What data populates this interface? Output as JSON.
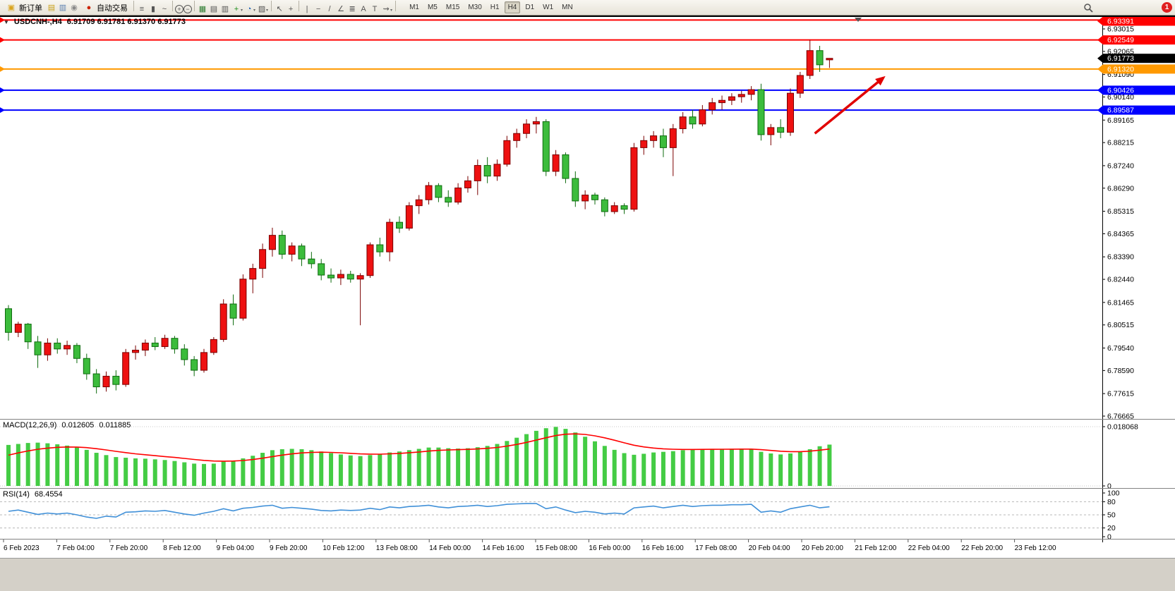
{
  "toolbar": {
    "new_order_label": "新订单",
    "autotrading_label": "自动交易",
    "left_icons": [
      {
        "name": "market-watch-icon",
        "glyph": "▤",
        "color": "#c8a018"
      },
      {
        "name": "data-window-icon",
        "glyph": "▥",
        "color": "#5a7fb0"
      },
      {
        "name": "navigator-icon",
        "glyph": "◉",
        "color": "#8a8a8a"
      }
    ],
    "tools": [
      {
        "sep": true
      },
      {
        "name": "chart-bars-icon",
        "glyph": "≡"
      },
      {
        "name": "chart-candles-icon",
        "glyph": "▮"
      },
      {
        "name": "chart-line-icon",
        "glyph": "~"
      },
      {
        "sep": true
      },
      {
        "name": "zoom-in-icon",
        "glyph": "+",
        "circ": true
      },
      {
        "name": "zoom-out-icon",
        "glyph": "−",
        "circ": true
      },
      {
        "sep": true
      },
      {
        "name": "tile-windows-icon",
        "glyph": "▦",
        "color": "#2e7d32"
      },
      {
        "name": "arrange-windows-icon",
        "glyph": "▤"
      },
      {
        "name": "cascade-windows-icon",
        "glyph": "▥"
      },
      {
        "name": "new-chart-icon",
        "glyph": "+",
        "color": "#1b8f1b",
        "dd": true
      },
      {
        "name": "periods-icon",
        "glyph": "◔",
        "color": "#1a5fb4",
        "dd": true
      },
      {
        "name": "templates-icon",
        "glyph": "▨",
        "dd": true
      },
      {
        "sep": true
      },
      {
        "name": "cursor-icon",
        "glyph": "↖"
      },
      {
        "name": "crosshair-icon",
        "glyph": "+"
      },
      {
        "sep": true
      },
      {
        "name": "vertical-line-icon",
        "glyph": "|"
      },
      {
        "name": "horizontal-line-icon",
        "glyph": "−"
      },
      {
        "name": "trendline-icon",
        "glyph": "/"
      },
      {
        "name": "equidistant-channel-icon",
        "glyph": "∠"
      },
      {
        "name": "fibonacci-icon",
        "glyph": "≣"
      },
      {
        "name": "text-icon",
        "glyph": "A"
      },
      {
        "name": "text-label-icon",
        "glyph": "T"
      },
      {
        "name": "arrows-tool-icon",
        "glyph": "⇝",
        "dd": true
      },
      {
        "sep": true
      }
    ],
    "timeframes": [
      "M1",
      "M5",
      "M15",
      "M30",
      "H1",
      "H4",
      "D1",
      "W1",
      "MN"
    ],
    "active_timeframe": "H4",
    "notification_count": "1"
  },
  "chart": {
    "symbol_title": "USDCNH-,H4",
    "ohlc_text": "6.91709 6.91781 6.91370 6.91773"
  },
  "chart_data": [
    {
      "type": "candlestick",
      "symbol": "USDCNH-",
      "timeframe": "H4",
      "open": 6.91709,
      "high": 6.91781,
      "low": 6.9137,
      "close": 6.91773,
      "y_ticks": [
        "6.93015",
        "6.92065",
        "6.91090",
        "6.90140",
        "6.89165",
        "6.88215",
        "6.87240",
        "6.86290",
        "6.85315",
        "6.84365",
        "6.83390",
        "6.82440",
        "6.81465",
        "6.80515",
        "6.79540",
        "6.78590",
        "6.77615",
        "6.76665"
      ],
      "x_labels": [
        "6 Feb 2023",
        "7 Feb 04:00",
        "7 Feb 20:00",
        "8 Feb 12:00",
        "9 Feb 04:00",
        "9 Feb 20:00",
        "10 Feb 12:00",
        "13 Feb 08:00",
        "14 Feb 00:00",
        "14 Feb 16:00",
        "15 Feb 08:00",
        "16 Feb 00:00",
        "16 Feb 16:00",
        "17 Feb 08:00",
        "20 Feb 04:00",
        "20 Feb 20:00",
        "21 Feb 12:00",
        "22 Feb 04:00",
        "22 Feb 20:00",
        "23 Feb 12:00"
      ],
      "colors": {
        "up": "#ee1111",
        "up_border": "#7a0000",
        "down": "#3cbc3c",
        "down_border": "#0e6b0e",
        "background": "#ffffff"
      },
      "h_lines": [
        {
          "price": 6.93391,
          "label": "6.93391",
          "color": "#ff0000"
        },
        {
          "price": 6.92549,
          "label": "6.92549",
          "color": "#ff0000"
        },
        {
          "price": 6.9132,
          "label": "6.91320",
          "color": "#ff9900"
        },
        {
          "price": 6.90426,
          "label": "6.90426",
          "color": "#0000ff"
        },
        {
          "price": 6.89587,
          "label": "6.89587",
          "color": "#0000ff"
        }
      ],
      "current_price": {
        "price": 6.91773,
        "label": "6.91773",
        "bg": "#000000"
      },
      "annotations": [
        {
          "type": "arrow",
          "color": "#e10000",
          "from_bar": 82.5,
          "from_price": 6.886,
          "to_bar": 89.5,
          "to_price": 6.9095
        }
      ],
      "candles": [
        [
          6.812,
          6.8135,
          6.7985,
          6.802
        ],
        [
          6.802,
          6.8065,
          6.8,
          6.8055
        ],
        [
          6.8055,
          6.806,
          6.795,
          6.798
        ],
        [
          6.798,
          6.8005,
          6.787,
          6.7925
        ],
        [
          6.7925,
          6.7995,
          6.79,
          6.7975
        ],
        [
          6.7975,
          6.7995,
          6.793,
          6.795
        ],
        [
          6.795,
          6.7985,
          6.7925,
          6.7965
        ],
        [
          6.7965,
          6.7975,
          6.789,
          6.791
        ],
        [
          6.791,
          6.793,
          6.782,
          6.7845
        ],
        [
          6.7845,
          6.7865,
          6.7762,
          6.779
        ],
        [
          6.779,
          6.7855,
          6.777,
          6.7835
        ],
        [
          6.7835,
          6.786,
          6.7775,
          6.78
        ],
        [
          6.78,
          6.795,
          6.779,
          6.7935
        ],
        [
          6.7935,
          6.7965,
          6.7905,
          6.7945
        ],
        [
          6.7945,
          6.799,
          6.792,
          6.7975
        ],
        [
          6.7975,
          6.8,
          6.7945,
          6.796
        ],
        [
          6.796,
          6.801,
          6.795,
          6.7995
        ],
        [
          6.7995,
          6.8005,
          6.793,
          6.795
        ],
        [
          6.795,
          6.797,
          6.788,
          6.7905
        ],
        [
          6.7905,
          6.792,
          6.7835,
          6.786
        ],
        [
          6.786,
          6.795,
          6.785,
          6.7935
        ],
        [
          6.7935,
          6.8,
          6.7925,
          6.799
        ],
        [
          6.799,
          6.816,
          6.798,
          6.814
        ],
        [
          6.814,
          6.818,
          6.805,
          6.808
        ],
        [
          6.808,
          6.8265,
          6.807,
          6.8245
        ],
        [
          6.8245,
          6.831,
          6.8185,
          6.829
        ],
        [
          6.829,
          6.8395,
          6.825,
          6.837
        ],
        [
          6.837,
          6.8462,
          6.834,
          6.843
        ],
        [
          6.843,
          6.845,
          6.833,
          6.835
        ],
        [
          6.835,
          6.84,
          6.832,
          6.8385
        ],
        [
          6.8385,
          6.8395,
          6.83,
          6.833
        ],
        [
          6.833,
          6.836,
          6.829,
          6.831
        ],
        [
          6.831,
          6.833,
          6.824,
          6.8262
        ],
        [
          6.8262,
          6.829,
          6.823,
          6.825
        ],
        [
          6.825,
          6.8285,
          6.822,
          6.8265
        ],
        [
          6.8265,
          6.828,
          6.823,
          6.8245
        ],
        [
          6.8245,
          6.827,
          6.805,
          6.826
        ],
        [
          6.826,
          6.84,
          6.825,
          6.839
        ],
        [
          6.839,
          6.842,
          6.834,
          6.836
        ],
        [
          6.836,
          6.85,
          6.832,
          6.8485
        ],
        [
          6.8485,
          6.851,
          6.844,
          6.846
        ],
        [
          6.846,
          6.857,
          6.845,
          6.8555
        ],
        [
          6.8555,
          6.86,
          6.852,
          6.858
        ],
        [
          6.858,
          6.8655,
          6.856,
          6.864
        ],
        [
          6.864,
          6.865,
          6.857,
          6.859
        ],
        [
          6.859,
          6.862,
          6.855,
          6.857
        ],
        [
          6.857,
          6.865,
          6.856,
          6.863
        ],
        [
          6.863,
          6.868,
          6.861,
          6.866
        ],
        [
          6.866,
          6.875,
          6.86,
          6.8725
        ],
        [
          6.8725,
          6.876,
          6.865,
          6.868
        ],
        [
          6.868,
          6.875,
          6.866,
          6.873
        ],
        [
          6.873,
          6.885,
          6.872,
          6.883
        ],
        [
          6.883,
          6.888,
          6.88,
          6.886
        ],
        [
          6.886,
          6.892,
          6.884,
          6.89
        ],
        [
          6.89,
          6.893,
          6.886,
          6.891
        ],
        [
          6.891,
          6.892,
          6.868,
          6.87
        ],
        [
          6.87,
          6.879,
          6.868,
          6.877
        ],
        [
          6.877,
          6.878,
          6.865,
          6.867
        ],
        [
          6.867,
          6.87,
          6.855,
          6.8575
        ],
        [
          6.8575,
          6.862,
          6.854,
          6.86
        ],
        [
          6.86,
          6.861,
          6.856,
          6.858
        ],
        [
          6.858,
          6.859,
          6.851,
          6.853
        ],
        [
          6.853,
          6.857,
          6.852,
          6.8555
        ],
        [
          6.8555,
          6.8565,
          6.852,
          6.854
        ],
        [
          6.854,
          6.882,
          6.853,
          6.88
        ],
        [
          6.88,
          6.885,
          6.877,
          6.883
        ],
        [
          6.883,
          6.887,
          6.88,
          6.885
        ],
        [
          6.885,
          6.888,
          6.876,
          6.88
        ],
        [
          6.88,
          6.89,
          6.868,
          6.888
        ],
        [
          6.888,
          6.895,
          6.886,
          6.893
        ],
        [
          6.893,
          6.896,
          6.888,
          6.89
        ],
        [
          6.89,
          6.898,
          6.889,
          6.896
        ],
        [
          6.896,
          6.901,
          6.894,
          6.899
        ],
        [
          6.899,
          6.902,
          6.896,
          6.9
        ],
        [
          6.9,
          6.903,
          6.898,
          6.9015
        ],
        [
          6.9015,
          6.904,
          6.899,
          6.9025
        ],
        [
          6.9025,
          6.906,
          6.9,
          6.9045
        ],
        [
          6.9045,
          6.907,
          6.883,
          6.8855
        ],
        [
          6.8855,
          6.89,
          6.881,
          6.8885
        ],
        [
          6.8885,
          6.892,
          6.884,
          6.8865
        ],
        [
          6.8865,
          6.905,
          6.885,
          6.903
        ],
        [
          6.903,
          6.912,
          6.901,
          6.9105
        ],
        [
          6.9105,
          6.9255,
          6.909,
          6.921
        ],
        [
          6.921,
          6.923,
          6.912,
          6.915
        ],
        [
          6.91709,
          6.91781,
          6.9137,
          6.91773
        ]
      ]
    },
    {
      "type": "bar",
      "name": "MACD",
      "label": "MACD(12,26,9)",
      "value_main": "0.012605",
      "value_signal": "0.011885",
      "y_ticks": [
        "0.018068",
        "0"
      ],
      "y_max": 0.018068,
      "signal_period": 9,
      "colors": {
        "histogram": "#44cc44",
        "signal": "#ff0000"
      },
      "histogram": [
        0.0125,
        0.0128,
        0.0131,
        0.0132,
        0.013,
        0.0127,
        0.0123,
        0.0117,
        0.011,
        0.0101,
        0.0094,
        0.0088,
        0.0086,
        0.0084,
        0.0083,
        0.0081,
        0.0079,
        0.0076,
        0.0072,
        0.0068,
        0.0067,
        0.0068,
        0.0074,
        0.0077,
        0.0084,
        0.0092,
        0.0101,
        0.0109,
        0.0112,
        0.0113,
        0.0112,
        0.0109,
        0.0105,
        0.01,
        0.0096,
        0.0093,
        0.0091,
        0.0094,
        0.0096,
        0.0102,
        0.0105,
        0.0109,
        0.0113,
        0.0117,
        0.0117,
        0.0115,
        0.0114,
        0.0115,
        0.0118,
        0.0122,
        0.0128,
        0.0137,
        0.0147,
        0.0158,
        0.0168,
        0.0176,
        0.018,
        0.0174,
        0.0163,
        0.015,
        0.0136,
        0.0122,
        0.011,
        0.01,
        0.0095,
        0.0098,
        0.0102,
        0.0104,
        0.0106,
        0.0109,
        0.0111,
        0.0112,
        0.0113,
        0.0113,
        0.0113,
        0.0113,
        0.0112,
        0.0104,
        0.0099,
        0.0096,
        0.0099,
        0.0105,
        0.0112,
        0.0121,
        0.0126
      ]
    },
    {
      "type": "line",
      "name": "RSI",
      "label": "RSI(14)",
      "value": "68.4554",
      "levels": [
        80,
        50,
        20
      ],
      "y_ticks": [
        "100",
        "80",
        "50",
        "20",
        "0"
      ],
      "range": [
        0,
        100
      ],
      "color": "#4090d8",
      "values": [
        58,
        61,
        56,
        51,
        54,
        52,
        54,
        50,
        45,
        42,
        47,
        45,
        56,
        57,
        59,
        58,
        60,
        56,
        52,
        49,
        54,
        58,
        64,
        59,
        65,
        67,
        70,
        72,
        65,
        67,
        65,
        63,
        60,
        59,
        61,
        60,
        61,
        65,
        62,
        68,
        66,
        69,
        70,
        72,
        68,
        66,
        69,
        70,
        72,
        69,
        71,
        74,
        75,
        76,
        76,
        64,
        68,
        61,
        55,
        58,
        56,
        52,
        54,
        52,
        66,
        68,
        70,
        66,
        69,
        72,
        69,
        71,
        72,
        72,
        73,
        73,
        74,
        56,
        59,
        56,
        64,
        68,
        72,
        66,
        68.46
      ]
    }
  ]
}
